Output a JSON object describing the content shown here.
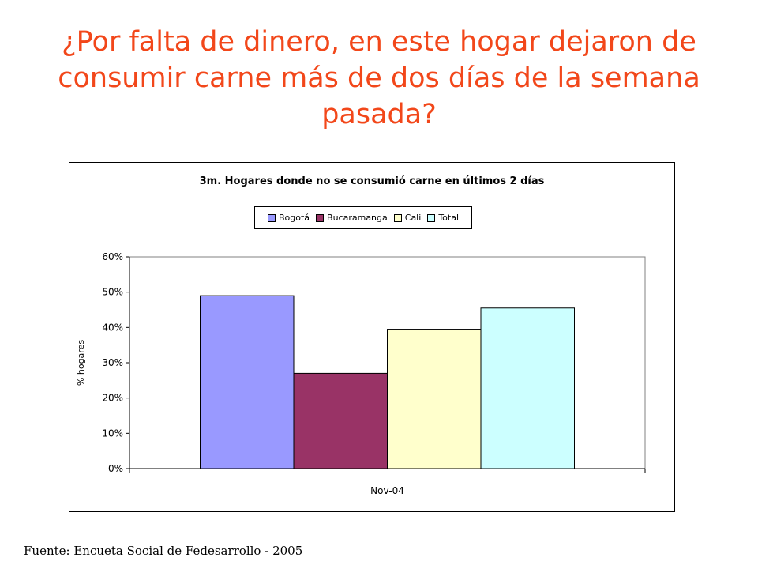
{
  "slide": {
    "title_lines": [
      "¿Por falta de dinero, en este hogar dejaron de",
      "consumir carne más de dos días de la semana",
      "pasada?"
    ],
    "source": "Fuente:  Encueta Social de Fedesarrollo - 2005"
  },
  "chart_data": {
    "type": "bar",
    "title": "3m. Hogares donde no se consumió carne en últimos 2 días",
    "categories": [
      "Nov-04"
    ],
    "series": [
      {
        "name": "Bogotá",
        "values": [
          0.49
        ],
        "color": "#9999ff"
      },
      {
        "name": "Bucaramanga",
        "values": [
          0.27
        ],
        "color": "#993366"
      },
      {
        "name": "Cali",
        "values": [
          0.395
        ],
        "color": "#ffffcc"
      },
      {
        "name": "Total",
        "values": [
          0.455
        ],
        "color": "#ccffff"
      }
    ],
    "ylabel": "% hogares",
    "xlabel": "",
    "ylim": [
      0,
      0.6
    ],
    "yticks": [
      "0%",
      "10%",
      "20%",
      "30%",
      "40%",
      "50%",
      "60%"
    ],
    "legend_position": "top-center",
    "grid": false
  }
}
